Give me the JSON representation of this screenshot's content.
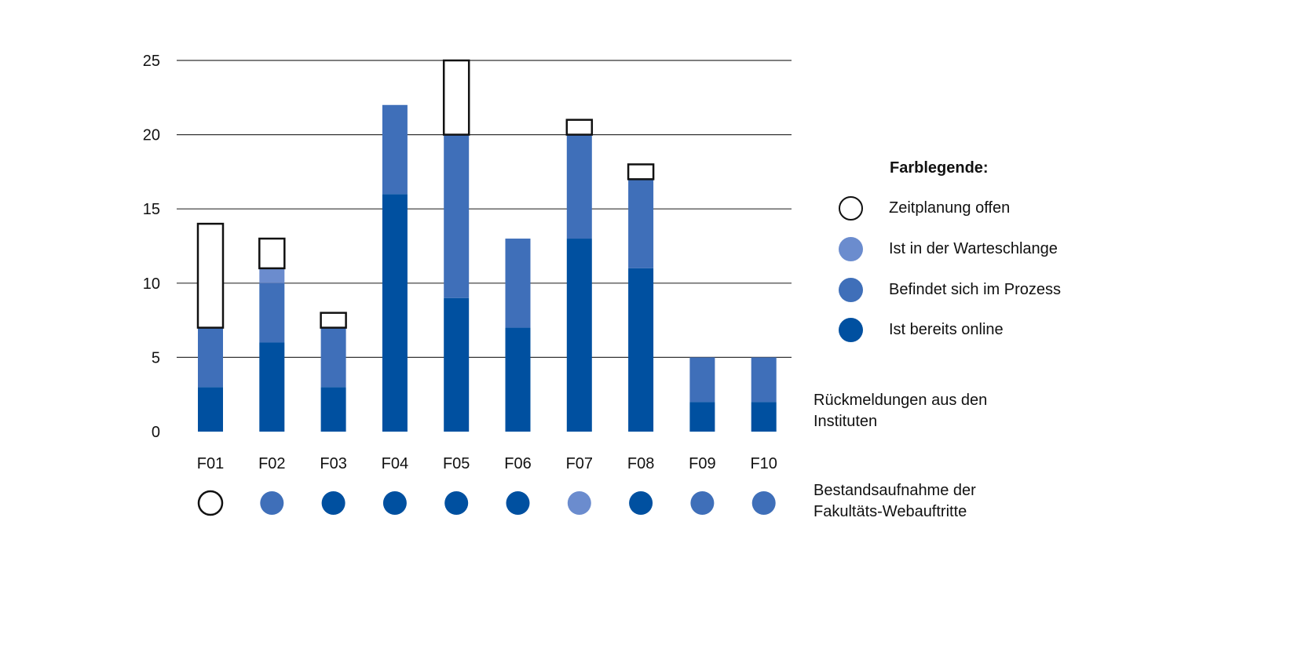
{
  "chart_data": {
    "type": "bar",
    "stacked": true,
    "categories": [
      "F01",
      "F02",
      "F03",
      "F04",
      "F05",
      "F06",
      "F07",
      "F08",
      "F09",
      "F10"
    ],
    "ylim": [
      0,
      25
    ],
    "yticks": [
      "0",
      "5",
      "10",
      "15",
      "20",
      "25"
    ],
    "grid": true,
    "series": [
      {
        "name": "Ist bereits online",
        "values": [
          3,
          6,
          3,
          16,
          9,
          7,
          13,
          11,
          2,
          2
        ]
      },
      {
        "name": "Befindet sich im Prozess",
        "values": [
          4,
          4,
          4,
          6,
          11,
          6,
          7,
          6,
          3,
          3
        ]
      },
      {
        "name": "Ist in der Warteschlange",
        "values": [
          0,
          1,
          0,
          0,
          0,
          0,
          0,
          0,
          0,
          0
        ]
      },
      {
        "name": "Zeitplanung offen",
        "values": [
          7,
          2,
          1,
          0,
          5,
          0,
          1,
          1,
          0,
          0
        ]
      }
    ],
    "status_row": [
      "Zeitplanung offen",
      "Befindet sich im Prozess",
      "Ist bereits online",
      "Ist bereits online",
      "Ist bereits online",
      "Ist bereits online",
      "Ist in der Warteschlange",
      "Ist bereits online",
      "Befindet sich im Prozess",
      "Befindet sich im Prozess"
    ],
    "legend_placement": "right"
  },
  "legend": {
    "title": "Farblegende:",
    "items": [
      {
        "label": "Zeitplanung offen",
        "color": "#ffffff",
        "outlined": true
      },
      {
        "label": "Ist in der Warteschlange",
        "color": "#6b8cce",
        "outlined": false
      },
      {
        "label": "Befindet sich im Prozess",
        "color": "#3f6fb9",
        "outlined": false
      },
      {
        "label": "Ist bereits online",
        "color": "#0050a0",
        "outlined": false
      }
    ]
  },
  "labels": {
    "bars_row": "Rückmeldungen aus den Instituten",
    "dots_row": "Bestandsaufnahme der Fakultäts-Webauftritte"
  },
  "colors": {
    "online": "#0050a0",
    "process": "#3f6fb9",
    "queue": "#6b8cce",
    "open": "#ffffff",
    "outline": "#111111",
    "grid": "#333333"
  }
}
